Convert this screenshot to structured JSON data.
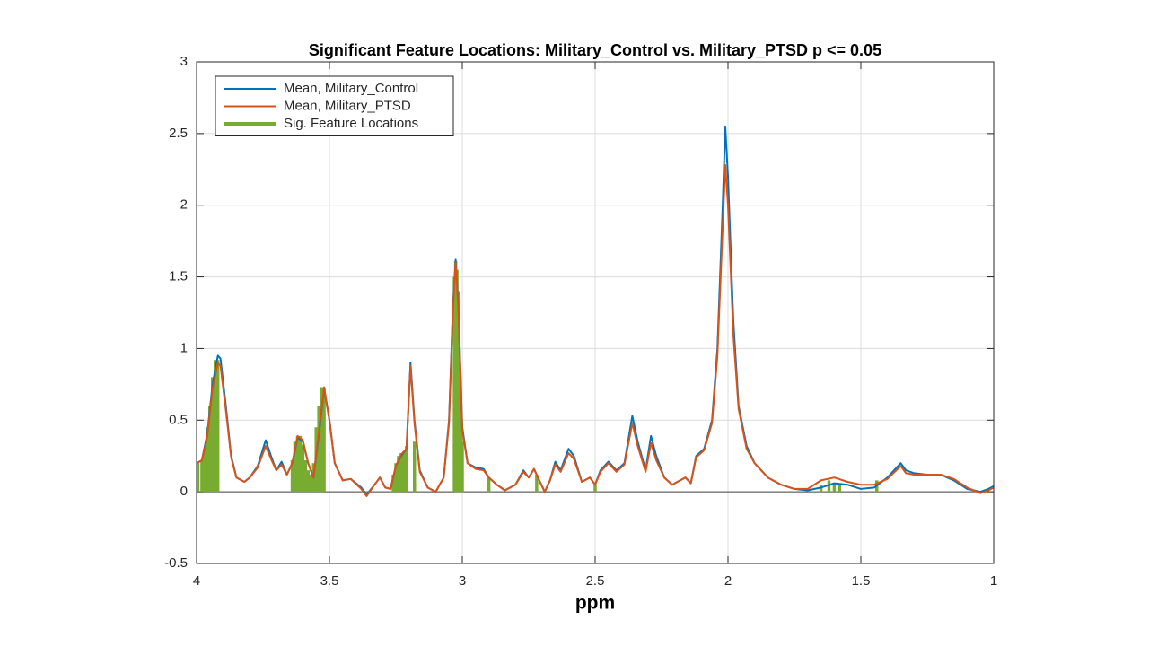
{
  "chart_data": {
    "type": "line",
    "title": "Significant Feature Locations: Military_Control vs. Military_PTSD p <= 0.05",
    "xlabel": "ppm",
    "x_reversed": true,
    "grid": true,
    "legend": "top-left",
    "xlim": [
      4,
      1
    ],
    "ylim": [
      -0.5,
      3
    ],
    "xticks": [
      4,
      3.5,
      3,
      2.5,
      2,
      1.5,
      1
    ],
    "yticks": [
      -0.5,
      0,
      0.5,
      1,
      1.5,
      2,
      2.5,
      3
    ],
    "x": [
      4.0,
      3.98,
      3.96,
      3.94,
      3.92,
      3.91,
      3.89,
      3.87,
      3.85,
      3.82,
      3.8,
      3.77,
      3.74,
      3.72,
      3.7,
      3.68,
      3.66,
      3.64,
      3.62,
      3.6,
      3.58,
      3.56,
      3.54,
      3.52,
      3.5,
      3.48,
      3.45,
      3.42,
      3.38,
      3.36,
      3.33,
      3.31,
      3.29,
      3.27,
      3.25,
      3.23,
      3.21,
      3.195,
      3.18,
      3.16,
      3.13,
      3.1,
      3.07,
      3.05,
      3.035,
      3.025,
      3.015,
      3.0,
      2.98,
      2.95,
      2.92,
      2.9,
      2.87,
      2.84,
      2.8,
      2.77,
      2.75,
      2.73,
      2.71,
      2.69,
      2.67,
      2.65,
      2.63,
      2.6,
      2.58,
      2.55,
      2.52,
      2.5,
      2.48,
      2.45,
      2.42,
      2.39,
      2.36,
      2.34,
      2.31,
      2.29,
      2.27,
      2.24,
      2.21,
      2.18,
      2.16,
      2.14,
      2.12,
      2.09,
      2.06,
      2.04,
      2.02,
      2.01,
      2.0,
      1.98,
      1.96,
      1.93,
      1.9,
      1.85,
      1.8,
      1.75,
      1.7,
      1.65,
      1.6,
      1.55,
      1.5,
      1.45,
      1.4,
      1.35,
      1.33,
      1.3,
      1.25,
      1.2,
      1.15,
      1.1,
      1.05,
      1.02,
      1.0
    ],
    "series": [
      {
        "name": "Mean, Military_Control",
        "color": "#0072BD",
        "values": [
          0.2,
          0.22,
          0.4,
          0.75,
          0.95,
          0.93,
          0.6,
          0.25,
          0.1,
          0.07,
          0.1,
          0.18,
          0.36,
          0.25,
          0.15,
          0.21,
          0.12,
          0.2,
          0.38,
          0.35,
          0.2,
          0.1,
          0.4,
          0.72,
          0.5,
          0.2,
          0.08,
          0.09,
          0.03,
          -0.02,
          0.05,
          0.1,
          0.03,
          0.02,
          0.18,
          0.25,
          0.3,
          0.9,
          0.5,
          0.15,
          0.03,
          0.0,
          0.1,
          0.5,
          1.3,
          1.62,
          1.3,
          0.45,
          0.2,
          0.17,
          0.16,
          0.1,
          0.05,
          0.01,
          0.05,
          0.15,
          0.1,
          0.16,
          0.08,
          0.0,
          0.08,
          0.21,
          0.15,
          0.3,
          0.25,
          0.07,
          0.1,
          0.05,
          0.15,
          0.21,
          0.15,
          0.2,
          0.53,
          0.35,
          0.15,
          0.39,
          0.25,
          0.1,
          0.05,
          0.08,
          0.1,
          0.06,
          0.25,
          0.3,
          0.5,
          1.0,
          2.0,
          2.55,
          2.2,
          1.2,
          0.6,
          0.32,
          0.2,
          0.1,
          0.05,
          0.02,
          0.01,
          0.03,
          0.06,
          0.05,
          0.02,
          0.03,
          0.1,
          0.2,
          0.15,
          0.13,
          0.12,
          0.12,
          0.08,
          0.02,
          0.0,
          0.02,
          0.04
        ]
      },
      {
        "name": "Mean, Military_PTSD",
        "color": "#D95319",
        "values": [
          0.2,
          0.22,
          0.38,
          0.72,
          0.9,
          0.88,
          0.57,
          0.24,
          0.1,
          0.07,
          0.1,
          0.17,
          0.32,
          0.23,
          0.15,
          0.19,
          0.12,
          0.2,
          0.39,
          0.36,
          0.2,
          0.1,
          0.42,
          0.73,
          0.5,
          0.2,
          0.08,
          0.09,
          0.02,
          -0.03,
          0.05,
          0.1,
          0.03,
          0.02,
          0.18,
          0.26,
          0.3,
          0.88,
          0.48,
          0.14,
          0.03,
          0.0,
          0.1,
          0.48,
          1.28,
          1.6,
          1.28,
          0.43,
          0.2,
          0.16,
          0.15,
          0.1,
          0.05,
          0.01,
          0.05,
          0.14,
          0.1,
          0.16,
          0.08,
          0.0,
          0.08,
          0.19,
          0.14,
          0.27,
          0.23,
          0.07,
          0.1,
          0.05,
          0.14,
          0.2,
          0.14,
          0.19,
          0.48,
          0.32,
          0.14,
          0.34,
          0.22,
          0.1,
          0.05,
          0.08,
          0.1,
          0.06,
          0.24,
          0.29,
          0.48,
          0.95,
          1.85,
          2.28,
          2.0,
          1.1,
          0.58,
          0.3,
          0.2,
          0.1,
          0.05,
          0.02,
          0.02,
          0.08,
          0.1,
          0.07,
          0.05,
          0.05,
          0.09,
          0.18,
          0.13,
          0.12,
          0.12,
          0.12,
          0.09,
          0.03,
          -0.01,
          0.01,
          0.03
        ]
      },
      {
        "name": "Sig. Feature Locations",
        "color": "#77AC30",
        "style": "stem",
        "x": [
          3.995,
          3.98,
          3.97,
          3.96,
          3.95,
          3.94,
          3.93,
          3.92,
          3.64,
          3.63,
          3.62,
          3.61,
          3.6,
          3.59,
          3.58,
          3.57,
          3.56,
          3.55,
          3.54,
          3.53,
          3.52,
          3.26,
          3.25,
          3.24,
          3.23,
          3.22,
          3.21,
          3.18,
          3.03,
          3.025,
          3.02,
          3.015,
          3.01,
          3.005,
          3.0,
          2.9,
          2.72,
          2.5,
          1.65,
          1.62,
          1.6,
          1.58,
          1.44
        ],
        "values": [
          0.2,
          0.22,
          0.3,
          0.45,
          0.6,
          0.8,
          0.92,
          0.92,
          0.22,
          0.35,
          0.39,
          0.39,
          0.33,
          0.22,
          0.15,
          0.12,
          0.2,
          0.45,
          0.6,
          0.73,
          0.72,
          0.12,
          0.2,
          0.25,
          0.27,
          0.28,
          0.32,
          0.35,
          1.5,
          1.61,
          1.55,
          1.4,
          0.8,
          0.5,
          0.35,
          0.1,
          0.12,
          0.05,
          0.05,
          0.08,
          0.06,
          0.05,
          0.08
        ]
      }
    ]
  }
}
